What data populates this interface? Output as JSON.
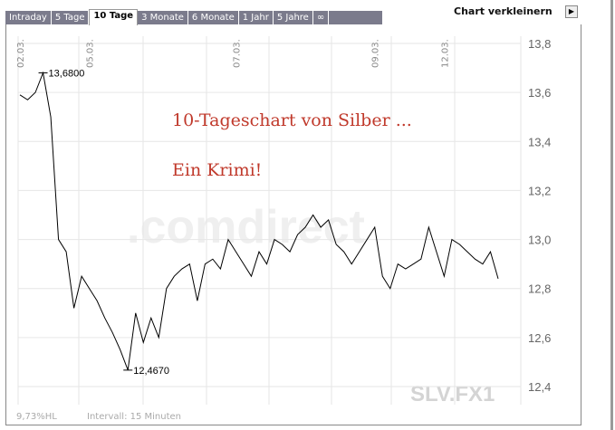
{
  "tabs": [
    {
      "label": "Intraday"
    },
    {
      "label": "5 Tage"
    },
    {
      "label": "10 Tage",
      "active": true
    },
    {
      "label": "3 Monate"
    },
    {
      "label": "6 Monate"
    },
    {
      "label": "1 Jahr"
    },
    {
      "label": "5 Jahre"
    },
    {
      "label": "∞"
    }
  ],
  "shrink_label": "Chart verkleinern",
  "shrink_icon": "arrow-right-icon",
  "overlay": {
    "line1": "10-Tageschart von Silber ...",
    "line2": "Ein Krimi!",
    "color": "#c0392b"
  },
  "watermark": ".comdirect",
  "symbol": "SLV.FX1",
  "footer": {
    "range": "9,73%HL",
    "interval": "Intervall: 15 Minuten"
  },
  "chart_data": {
    "type": "line",
    "ylim": [
      12.4,
      13.8
    ],
    "yticks": [
      "13,8",
      "13,6",
      "13,4",
      "13,2",
      "13,0",
      "12,8",
      "12,6",
      "12,4"
    ],
    "ytick_values": [
      13.8,
      13.6,
      13.4,
      13.2,
      13.0,
      12.8,
      12.6,
      12.4
    ],
    "xtick_labels": [
      {
        "label": "02.03.",
        "index": 0
      },
      {
        "label": "05.03.",
        "index": 9
      },
      {
        "label": "07.03.",
        "index": 28
      },
      {
        "label": "09.03.",
        "index": 46
      },
      {
        "label": "12.03.",
        "index": 55
      }
    ],
    "grid": true,
    "annotations": [
      {
        "label": "13,6800",
        "value": 13.68,
        "index": 3
      },
      {
        "label": "12,4670",
        "value": 12.467,
        "index": 14
      }
    ],
    "values": [
      13.59,
      13.57,
      13.6,
      13.68,
      13.5,
      13.0,
      12.95,
      12.72,
      12.85,
      12.8,
      12.75,
      12.68,
      12.62,
      12.55,
      12.467,
      12.7,
      12.58,
      12.68,
      12.6,
      12.8,
      12.85,
      12.88,
      12.9,
      12.75,
      12.9,
      12.92,
      12.88,
      13.0,
      12.95,
      12.9,
      12.85,
      12.95,
      12.9,
      13.0,
      12.98,
      12.95,
      13.02,
      13.05,
      13.1,
      13.05,
      13.08,
      12.98,
      12.95,
      12.9,
      12.95,
      13.0,
      13.05,
      12.85,
      12.8,
      12.9,
      12.88,
      12.9,
      12.92,
      13.05,
      12.95,
      12.85,
      13.0,
      12.98,
      12.95,
      12.92,
      12.9,
      12.95,
      12.84
    ]
  }
}
